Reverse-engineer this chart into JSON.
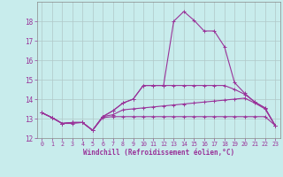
{
  "xlabel": "Windchill (Refroidissement éolien,°C)",
  "bg_color": "#c8ecec",
  "line_color": "#993399",
  "xlim": [
    -0.5,
    23.5
  ],
  "ylim": [
    12,
    19.0
  ],
  "xticks": [
    0,
    1,
    2,
    3,
    4,
    5,
    6,
    7,
    8,
    9,
    10,
    11,
    12,
    13,
    14,
    15,
    16,
    17,
    18,
    19,
    20,
    21,
    22,
    23
  ],
  "yticks": [
    12,
    13,
    14,
    15,
    16,
    17,
    18
  ],
  "grid_color": "#b0c8c8",
  "line1_x": [
    0,
    1,
    2,
    3,
    4,
    5,
    6,
    7,
    8,
    9,
    10,
    11,
    12,
    13,
    14,
    15,
    16,
    17,
    18,
    19,
    20,
    21,
    22,
    23
  ],
  "line1_y": [
    13.3,
    13.05,
    12.75,
    12.75,
    12.8,
    12.4,
    13.05,
    13.1,
    13.1,
    13.1,
    13.1,
    13.1,
    13.1,
    13.1,
    13.1,
    13.1,
    13.1,
    13.1,
    13.1,
    13.1,
    13.1,
    13.1,
    13.1,
    12.65
  ],
  "line2_x": [
    0,
    1,
    2,
    3,
    4,
    5,
    6,
    7,
    8,
    9,
    10,
    11,
    12,
    13,
    14,
    15,
    16,
    17,
    18,
    19,
    20,
    21,
    22,
    23
  ],
  "line2_y": [
    13.3,
    13.05,
    12.75,
    12.8,
    12.8,
    12.4,
    13.1,
    13.2,
    13.45,
    13.5,
    13.55,
    13.6,
    13.65,
    13.7,
    13.75,
    13.8,
    13.85,
    13.9,
    13.95,
    14.0,
    14.05,
    13.8,
    13.5,
    12.65
  ],
  "line3_x": [
    0,
    1,
    2,
    3,
    4,
    5,
    6,
    7,
    8,
    9,
    10,
    11,
    12,
    13,
    14,
    15,
    16,
    17,
    18,
    19,
    20,
    21,
    22,
    23
  ],
  "line3_y": [
    13.3,
    13.05,
    12.75,
    12.8,
    12.8,
    12.4,
    13.1,
    13.4,
    13.8,
    14.0,
    14.7,
    14.7,
    14.7,
    14.7,
    14.7,
    14.7,
    14.7,
    14.7,
    14.7,
    14.5,
    14.25,
    13.85,
    13.55,
    12.65
  ],
  "line4_x": [
    0,
    1,
    2,
    3,
    4,
    5,
    6,
    7,
    8,
    9,
    10,
    11,
    12,
    13,
    14,
    15,
    16,
    17,
    18,
    19,
    20,
    21,
    22,
    23
  ],
  "line4_y": [
    13.3,
    13.05,
    12.75,
    12.8,
    12.8,
    12.4,
    13.1,
    13.4,
    13.8,
    14.0,
    14.7,
    14.7,
    14.7,
    18.0,
    18.5,
    18.05,
    17.5,
    17.5,
    16.7,
    14.85,
    14.3,
    13.85,
    13.55,
    12.65
  ]
}
